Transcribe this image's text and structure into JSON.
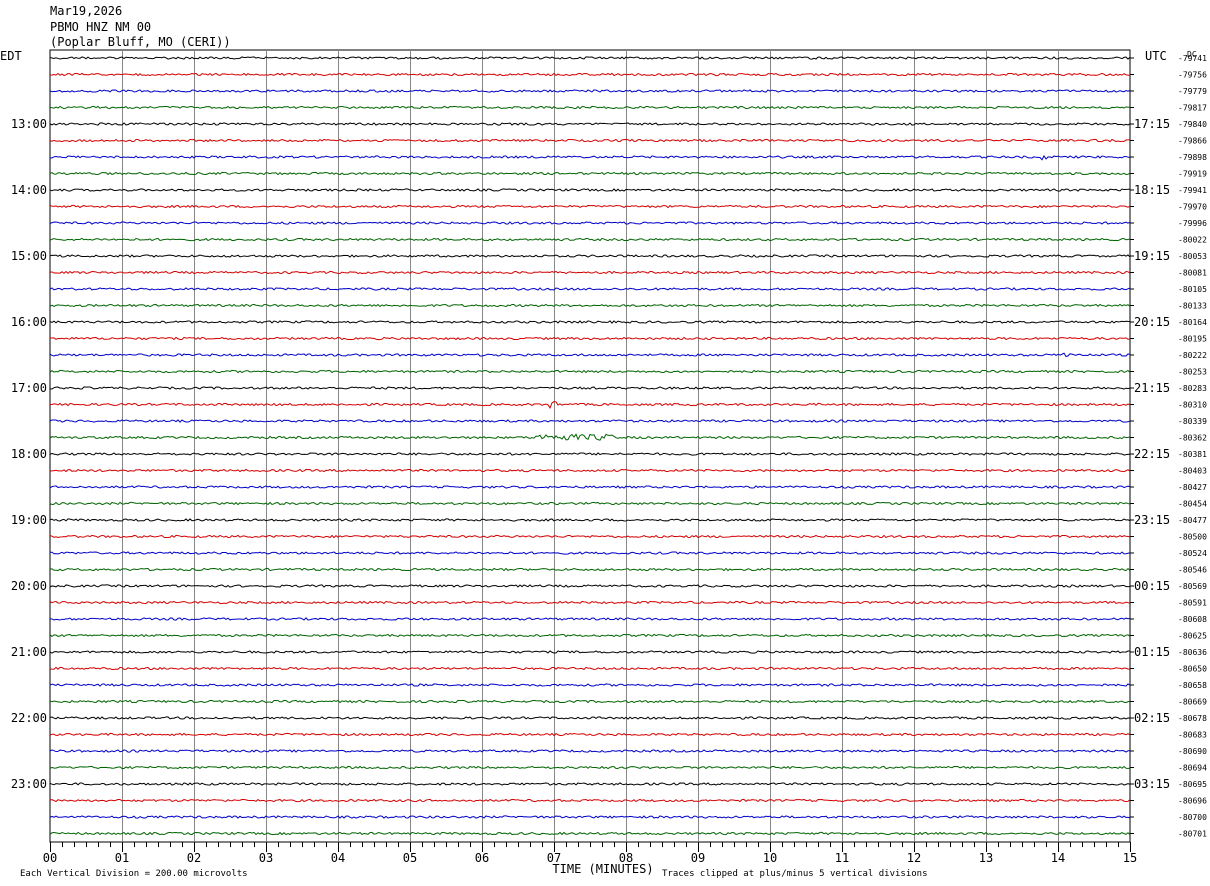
{
  "header": {
    "date": "Mar19,2026",
    "station": "PBMO HNZ NM 00",
    "location": "(Poplar Bluff, MO (CERI))"
  },
  "chart_data": {
    "type": "line",
    "plot_kind": "helicorder",
    "left_timezone": "EDT",
    "right_timezone": "UTC",
    "right_top_label": "DC",
    "xlabel": "TIME (MINUTES)",
    "x_ticks": [
      "00",
      "01",
      "02",
      "03",
      "04",
      "05",
      "06",
      "07",
      "08",
      "09",
      "10",
      "11",
      "12",
      "13",
      "14",
      "15"
    ],
    "xlim": [
      0,
      15
    ],
    "minutes_per_line": 15,
    "line_count": 48,
    "trace_colors": [
      "#000000",
      "#d40000",
      "#0000c8",
      "#006400"
    ],
    "left_hour_labels": [
      "13:00",
      "14:00",
      "15:00",
      "16:00",
      "17:00",
      "18:00",
      "19:00",
      "20:00",
      "21:00",
      "22:00",
      "23:00"
    ],
    "right_hour_labels": [
      "17:15",
      "18:15",
      "19:15",
      "20:15",
      "21:15",
      "22:15",
      "23:15",
      "00:15",
      "01:15",
      "02:15",
      "03:15"
    ],
    "dc_offsets": [
      "-79741",
      "-79756",
      "-79779",
      "-79817",
      "-79840",
      "-79866",
      "-79898",
      "-79919",
      "-79941",
      "-79970",
      "-79996",
      "-80022",
      "-80053",
      "-80081",
      "-80105",
      "-80133",
      "-80164",
      "-80195",
      "-80222",
      "-80253",
      "-80283",
      "-80310",
      "-80339",
      "-80362",
      "-80381",
      "-80403",
      "-80427",
      "-80454",
      "-80477",
      "-80500",
      "-80524",
      "-80546",
      "-80569",
      "-80591",
      "-80608",
      "-80625",
      "-80636",
      "-80650",
      "-80658",
      "-80669",
      "-80678",
      "-80683",
      "-80690",
      "-80694",
      "-80695",
      "-80696",
      "-80700",
      "-80701"
    ],
    "notes": {
      "scale": "Each Vertical Division =  200.00 microvolts",
      "clipping": "Traces clipped at plus/minus 5 vertical divisions"
    }
  }
}
